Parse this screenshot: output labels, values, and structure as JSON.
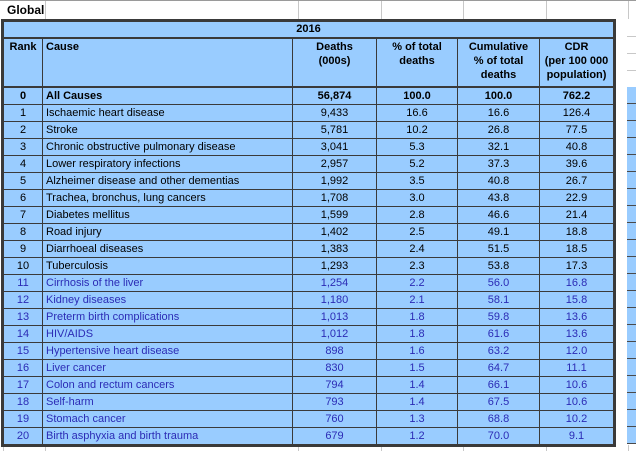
{
  "sheet": {
    "region_label": "Global",
    "year": "2016"
  },
  "table": {
    "columns": [
      "Rank",
      "Cause",
      "Deaths\n(000s)",
      "% of total\ndeaths",
      "Cumulative\n% of total\ndeaths",
      "CDR\n(per 100 000\npopulation)"
    ],
    "rows": [
      {
        "rank": "0",
        "cause": "All Causes",
        "deaths": "56,874",
        "pct": "100.0",
        "cum": "100.0",
        "cdr": "762.2",
        "bold": true,
        "style": "default"
      },
      {
        "rank": "1",
        "cause": "Ischaemic heart disease",
        "deaths": "9,433",
        "pct": "16.6",
        "cum": "16.6",
        "cdr": "126.4",
        "bold": false,
        "style": "default"
      },
      {
        "rank": "2",
        "cause": "Stroke",
        "deaths": "5,781",
        "pct": "10.2",
        "cum": "26.8",
        "cdr": "77.5",
        "bold": false,
        "style": "default"
      },
      {
        "rank": "3",
        "cause": "Chronic obstructive pulmonary disease",
        "deaths": "3,041",
        "pct": "5.3",
        "cum": "32.1",
        "cdr": "40.8",
        "bold": false,
        "style": "default"
      },
      {
        "rank": "4",
        "cause": "Lower respiratory infections",
        "deaths": "2,957",
        "pct": "5.2",
        "cum": "37.3",
        "cdr": "39.6",
        "bold": false,
        "style": "default"
      },
      {
        "rank": "5",
        "cause": "Alzheimer disease and other dementias",
        "deaths": "1,992",
        "pct": "3.5",
        "cum": "40.8",
        "cdr": "26.7",
        "bold": false,
        "style": "default"
      },
      {
        "rank": "6",
        "cause": "Trachea, bronchus, lung cancers",
        "deaths": "1,708",
        "pct": "3.0",
        "cum": "43.8",
        "cdr": "22.9",
        "bold": false,
        "style": "default"
      },
      {
        "rank": "7",
        "cause": "Diabetes mellitus",
        "deaths": "1,599",
        "pct": "2.8",
        "cum": "46.6",
        "cdr": "21.4",
        "bold": false,
        "style": "default"
      },
      {
        "rank": "8",
        "cause": "Road injury",
        "deaths": "1,402",
        "pct": "2.5",
        "cum": "49.1",
        "cdr": "18.8",
        "bold": false,
        "style": "default"
      },
      {
        "rank": "9",
        "cause": "Diarrhoeal diseases",
        "deaths": "1,383",
        "pct": "2.4",
        "cum": "51.5",
        "cdr": "18.5",
        "bold": false,
        "style": "default"
      },
      {
        "rank": "10",
        "cause": "Tuberculosis",
        "deaths": "1,293",
        "pct": "2.3",
        "cum": "53.8",
        "cdr": "17.3",
        "bold": false,
        "style": "default"
      },
      {
        "rank": "11",
        "cause": "Cirrhosis of the liver",
        "deaths": "1,254",
        "pct": "2.2",
        "cum": "56.0",
        "cdr": "16.8",
        "bold": false,
        "style": "navy"
      },
      {
        "rank": "12",
        "cause": "Kidney diseases",
        "deaths": "1,180",
        "pct": "2.1",
        "cum": "58.1",
        "cdr": "15.8",
        "bold": false,
        "style": "navy"
      },
      {
        "rank": "13",
        "cause": "Preterm birth complications",
        "deaths": "1,013",
        "pct": "1.8",
        "cum": "59.8",
        "cdr": "13.6",
        "bold": false,
        "style": "navy"
      },
      {
        "rank": "14",
        "cause": "HIV/AIDS",
        "deaths": "1,012",
        "pct": "1.8",
        "cum": "61.6",
        "cdr": "13.6",
        "bold": false,
        "style": "navy"
      },
      {
        "rank": "15",
        "cause": "Hypertensive heart disease",
        "deaths": "898",
        "pct": "1.6",
        "cum": "63.2",
        "cdr": "12.0",
        "bold": false,
        "style": "navy"
      },
      {
        "rank": "16",
        "cause": "Liver cancer",
        "deaths": "830",
        "pct": "1.5",
        "cum": "64.7",
        "cdr": "11.1",
        "bold": false,
        "style": "navy"
      },
      {
        "rank": "17",
        "cause": "Colon and rectum cancers",
        "deaths": "794",
        "pct": "1.4",
        "cum": "66.1",
        "cdr": "10.6",
        "bold": false,
        "style": "navy"
      },
      {
        "rank": "18",
        "cause": "Self-harm",
        "deaths": "793",
        "pct": "1.4",
        "cum": "67.5",
        "cdr": "10.6",
        "bold": false,
        "style": "navy"
      },
      {
        "rank": "19",
        "cause": "Stomach cancer",
        "deaths": "760",
        "pct": "1.3",
        "cum": "68.8",
        "cdr": "10.2",
        "bold": false,
        "style": "navy"
      },
      {
        "rank": "20",
        "cause": "Birth asphyxia and birth trauma",
        "deaths": "679",
        "pct": "1.2",
        "cum": "70.0",
        "cdr": "9.1",
        "bold": false,
        "style": "navy"
      }
    ]
  },
  "colors": {
    "table_bg": "#99ccff",
    "border": "#3a3a3a",
    "navy_text": "#2b2bb5",
    "text": "#000000",
    "gridline": "#c8c8c8"
  }
}
